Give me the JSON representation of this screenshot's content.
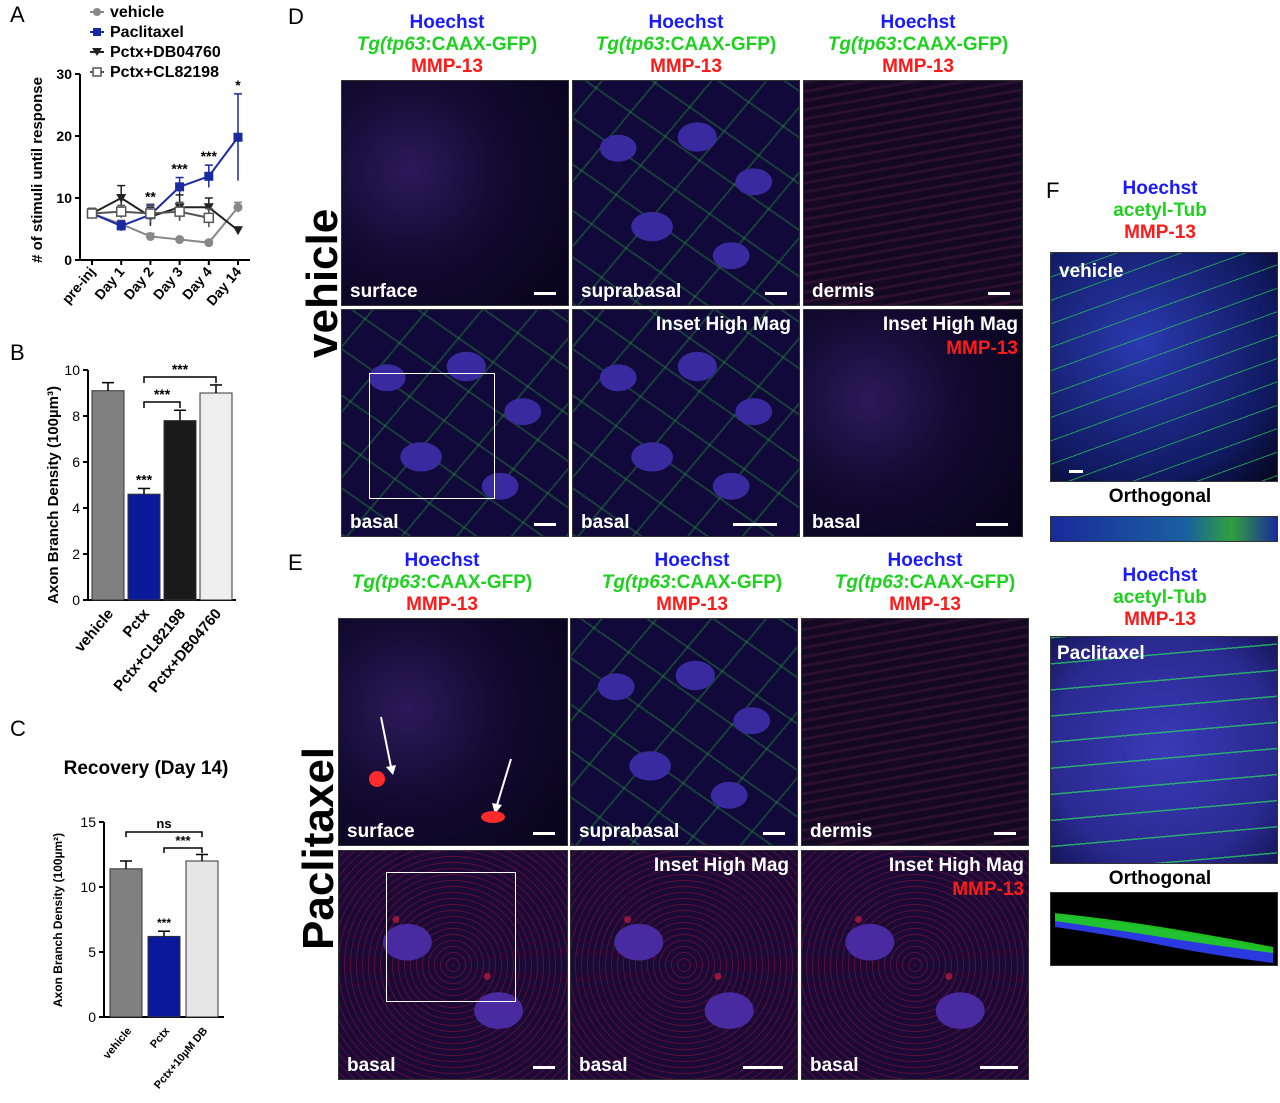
{
  "panel_labels": {
    "A": "A",
    "B": "B",
    "C": "C",
    "D": "D",
    "E": "E",
    "F": "F"
  },
  "chart_data": [
    {
      "type": "line",
      "panel": "A",
      "categories": [
        "pre-inj",
        "Day 1",
        "Day 2",
        "Day 3",
        "Day 4",
        "Day 14"
      ],
      "ylabel": "# of stimuli until response",
      "ylim": [
        0,
        30
      ],
      "yticks": [
        "0",
        "10",
        "20",
        "30"
      ],
      "series": [
        {
          "name": "vehicle",
          "color": "#888888",
          "marker": "circle",
          "values": [
            7.5,
            5.8,
            3.8,
            3.3,
            2.8,
            8.5
          ],
          "err": [
            0.8,
            0.6,
            0.5,
            0.3,
            0.3,
            0.8
          ]
        },
        {
          "name": "Paclitaxel",
          "color": "#1a2aa0",
          "marker": "square",
          "values": [
            7.5,
            5.5,
            7.3,
            11.8,
            13.5,
            19.8
          ],
          "err": [
            0.8,
            0.8,
            1.5,
            1.5,
            1.8,
            7.0
          ]
        },
        {
          "name": "Pctx+DB04760",
          "color": "#222222",
          "marker": "tri-down",
          "values": [
            7.5,
            10.0,
            7.0,
            8.5,
            8.5,
            4.8
          ],
          "err": [
            0.8,
            2.0,
            1.5,
            2.0,
            1.5,
            0.5
          ]
        },
        {
          "name": "Pctx+CL82198",
          "color": "#555555",
          "marker": "square-open",
          "values": [
            7.5,
            7.8,
            7.5,
            7.8,
            6.8,
            null
          ],
          "err": [
            0.8,
            1.0,
            1.5,
            1.5,
            1.5,
            null
          ]
        }
      ],
      "annotations": [
        "**",
        "***",
        "***",
        "*"
      ],
      "annotation_x": [
        "Day 2",
        "Day 3",
        "Day 4",
        "Day 14"
      ]
    },
    {
      "type": "bar",
      "panel": "B",
      "categories": [
        "vehicle",
        "Pctx",
        "Pctx+CL82198",
        "Pctx+DB04760"
      ],
      "values": [
        9.1,
        4.6,
        7.8,
        9.0
      ],
      "err": [
        0.35,
        0.25,
        0.45,
        0.35
      ],
      "colors": [
        "#808080",
        "#0a1a9a",
        "#1a1a1a",
        "#eeeeee"
      ],
      "ylabel": "Axon Branch Density (100µm³)",
      "ylim": [
        0,
        10
      ],
      "yticks": [
        "0",
        "2",
        "4",
        "6",
        "8",
        "10"
      ],
      "bar_sig": [
        "***",
        "",
        ""
      ],
      "brackets": [
        "***",
        "***"
      ]
    },
    {
      "type": "bar",
      "panel": "C",
      "title": "Recovery (Day 14)",
      "categories": [
        "vehicle",
        "Pctx",
        "Pctx+10µM DB"
      ],
      "values": [
        11.4,
        6.2,
        12.0
      ],
      "err": [
        0.6,
        0.4,
        0.5
      ],
      "colors": [
        "#808080",
        "#0a1a9a",
        "#e6e6e6"
      ],
      "ylabel": "Axon Branch Density (100µm²)",
      "ylim": [
        0,
        15
      ],
      "yticks": [
        "0",
        "5",
        "10",
        "15"
      ],
      "bar_sig": "***",
      "brackets": [
        "ns",
        "***"
      ]
    }
  ],
  "stain": {
    "hoechst": "Hoechst",
    "tg_italic": "Tg(tp63",
    "tg_rest": ":CAAX-GFP)",
    "mmp": "MMP-13",
    "acetyl": "acetyl-Tub"
  },
  "conditions": {
    "vehicle": "vehicle",
    "paclitaxel": "Paclitaxel"
  },
  "image_labels": {
    "surface": "surface",
    "suprabasal": "suprabasal",
    "dermis": "dermis",
    "basal": "basal",
    "inset": "Inset High Mag",
    "mmp": "MMP-13",
    "orthogonal": "Orthogonal"
  }
}
